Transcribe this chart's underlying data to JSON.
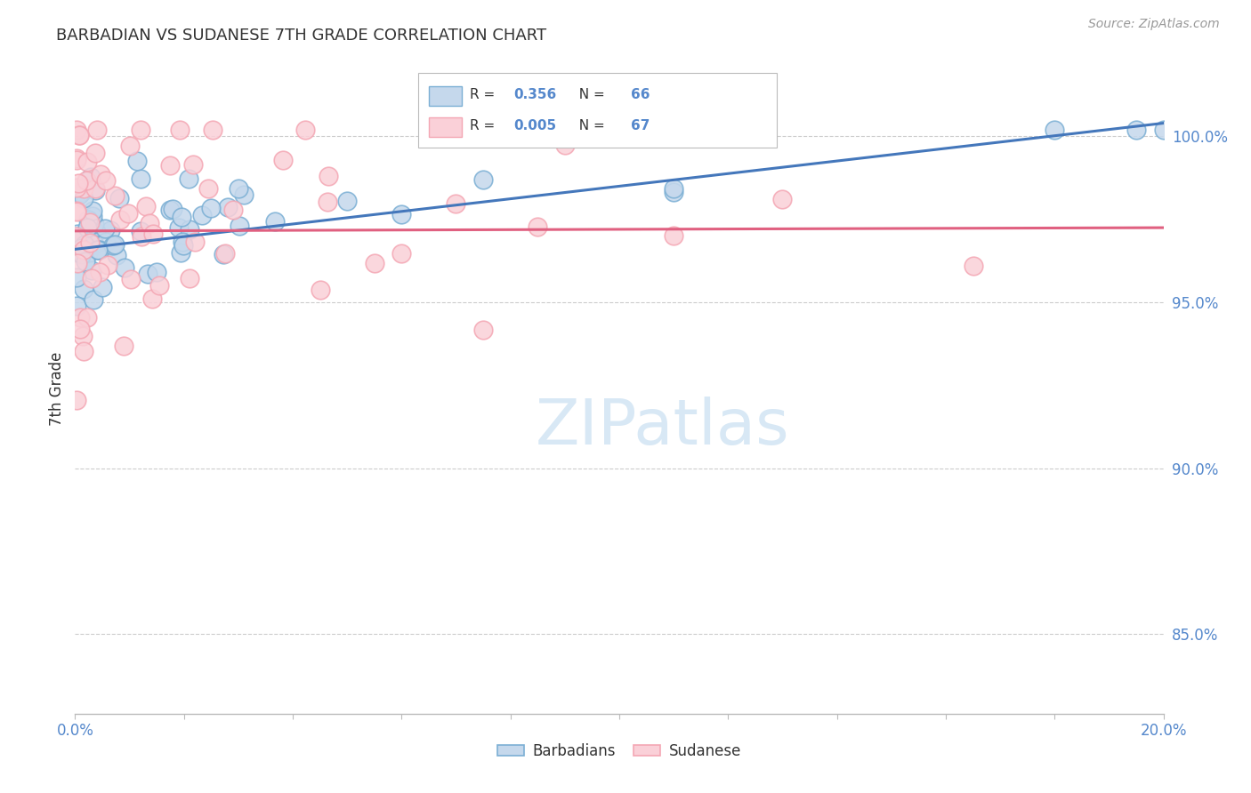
{
  "title": "BARBADIAN VS SUDANESE 7TH GRADE CORRELATION CHART",
  "source": "Source: ZipAtlas.com",
  "ylabel": "7th Grade",
  "ytick_labels": [
    "85.0%",
    "90.0%",
    "95.0%",
    "100.0%"
  ],
  "ytick_values": [
    0.85,
    0.9,
    0.95,
    1.0
  ],
  "xlim": [
    0.0,
    0.2
  ],
  "ylim": [
    0.826,
    1.022
  ],
  "legend_label_blue": "Barbadians",
  "legend_label_pink": "Sudanese",
  "blue_color": "#7BAFD4",
  "pink_color": "#F4A7B4",
  "blue_fill": "#C5D8EC",
  "pink_fill": "#FAD0D8",
  "regression_blue": [
    0.0,
    0.966,
    0.2,
    1.004
  ],
  "regression_pink": [
    0.0,
    0.9715,
    0.2,
    0.9725
  ],
  "reg_blue_color": "#4477BB",
  "reg_pink_color": "#E06080",
  "r_blue": "0.356",
  "n_blue": "66",
  "r_pink": "0.005",
  "n_pink": "67",
  "watermark_color": "#D8E8F5",
  "grid_color": "#CCCCCC",
  "title_color": "#333333",
  "source_color": "#999999",
  "ytick_color": "#5588CC",
  "xtick_color": "#5588CC"
}
